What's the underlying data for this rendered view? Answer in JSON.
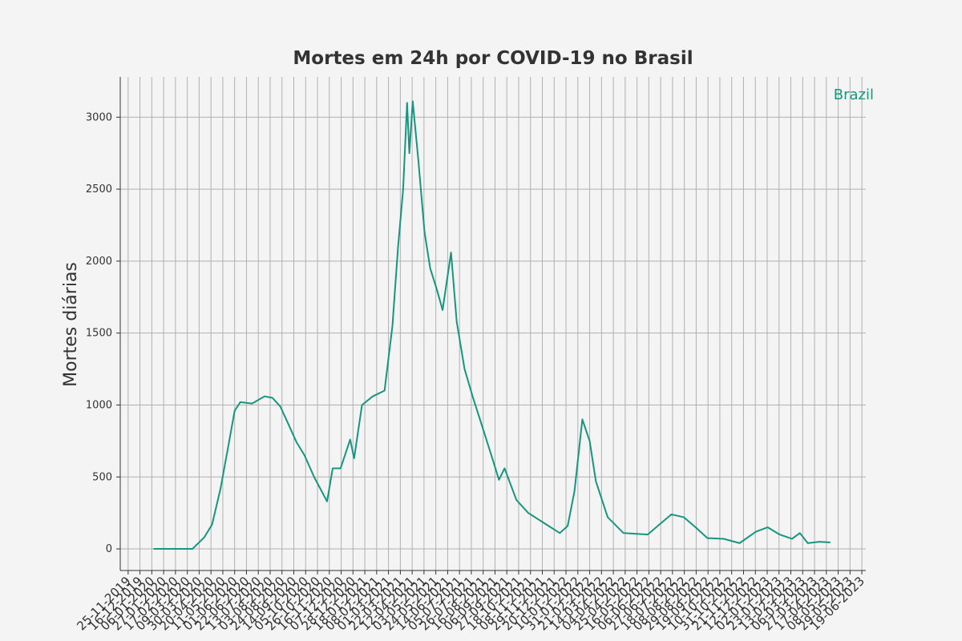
{
  "chart_data": {
    "type": "line",
    "title": "Mortes em 24h por COVID-19 no Brasil",
    "y_label": "Mortes diárias",
    "legend": "upper right",
    "grid": true,
    "xlim": [
      "11-11-2019",
      "26-06-2023"
    ],
    "ylim": [
      -150,
      3280
    ],
    "yticks": [
      0,
      500,
      1000,
      1500,
      2000,
      2500,
      3000
    ],
    "xticks": [
      "25-11-2019",
      "16-12-2019",
      "06-01-2020",
      "27-01-2020",
      "17-02-2020",
      "09-03-2020",
      "30-03-2020",
      "20-04-2020",
      "11-05-2020",
      "01-06-2020",
      "22-06-2020",
      "13-07-2020",
      "03-08-2020",
      "24-08-2020",
      "14-09-2020",
      "05-10-2020",
      "26-10-2020",
      "16-11-2020",
      "07-12-2020",
      "28-12-2020",
      "18-01-2021",
      "08-02-2021",
      "01-03-2021",
      "22-03-2021",
      "12-04-2021",
      "03-05-2021",
      "24-05-2021",
      "14-06-2021",
      "05-07-2021",
      "26-07-2021",
      "16-08-2021",
      "06-09-2021",
      "27-09-2021",
      "18-10-2021",
      "08-11-2021",
      "29-11-2021",
      "20-12-2021",
      "10-01-2022",
      "31-01-2022",
      "21-02-2022",
      "14-03-2022",
      "04-04-2022",
      "25-04-2022",
      "16-05-2022",
      "06-06-2022",
      "27-06-2022",
      "18-07-2022",
      "08-08-2022",
      "29-08-2022",
      "19-09-2022",
      "10-10-2022",
      "31-10-2022",
      "21-11-2022",
      "12-12-2022",
      "02-01-2023",
      "23-01-2023",
      "13-02-2023",
      "06-03-2023",
      "27-03-2023",
      "17-04-2023",
      "08-05-2023",
      "29-05-2023",
      "19-06-2023"
    ],
    "x": [
      "09-01-2020",
      "18-03-2020",
      "08-04-2020",
      "22-04-2020",
      "07-05-2020",
      "21-05-2020",
      "01-06-2020",
      "11-06-2020",
      "02-07-2020",
      "24-07-2020",
      "07-08-2020",
      "21-08-2020",
      "04-09-2020",
      "19-09-2020",
      "03-10-2020",
      "20-10-2020",
      "12-11-2020",
      "22-11-2020",
      "06-12-2020",
      "23-12-2020",
      "30-12-2020",
      "13-01-2021",
      "01-02-2021",
      "22-02-2021",
      "08-03-2021",
      "18-03-2021",
      "27-03-2021",
      "03-04-2021",
      "07-04-2021",
      "13-04-2021",
      "23-04-2021",
      "04-05-2021",
      "14-05-2021",
      "26-05-2021",
      "05-06-2021",
      "20-06-2021",
      "30-06-2021",
      "14-07-2021",
      "29-07-2021",
      "12-08-2021",
      "02-09-2021",
      "13-09-2021",
      "23-09-2021",
      "14-10-2021",
      "04-11-2021",
      "02-12-2021",
      "30-12-2021",
      "13-01-2022",
      "25-01-2022",
      "08-02-2022",
      "21-02-2022",
      "04-03-2022",
      "25-03-2022",
      "22-04-2022",
      "04-06-2022",
      "25-06-2022",
      "16-07-2022",
      "07-08-2022",
      "28-08-2022",
      "18-09-2022",
      "17-10-2022",
      "14-11-2022",
      "13-12-2022",
      "03-01-2023",
      "24-01-2023",
      "15-02-2023",
      "01-03-2023",
      "15-03-2023",
      "05-04-2023",
      "24-04-2023"
    ],
    "series": [
      {
        "name": "Brazil",
        "color": "#16967f",
        "values": [
          0,
          0,
          80,
          170,
          420,
          720,
          960,
          1020,
          1010,
          1060,
          1050,
          990,
          870,
          740,
          650,
          500,
          330,
          560,
          560,
          760,
          630,
          1000,
          1060,
          1100,
          1550,
          2100,
          2500,
          3100,
          2750,
          3110,
          2700,
          2200,
          1950,
          1800,
          1660,
          2060,
          1580,
          1250,
          1050,
          880,
          620,
          480,
          560,
          340,
          250,
          180,
          110,
          160,
          400,
          900,
          750,
          470,
          220,
          110,
          100,
          170,
          240,
          220,
          150,
          75,
          70,
          40,
          120,
          150,
          100,
          70,
          110,
          40,
          50,
          45
        ]
      }
    ]
  }
}
